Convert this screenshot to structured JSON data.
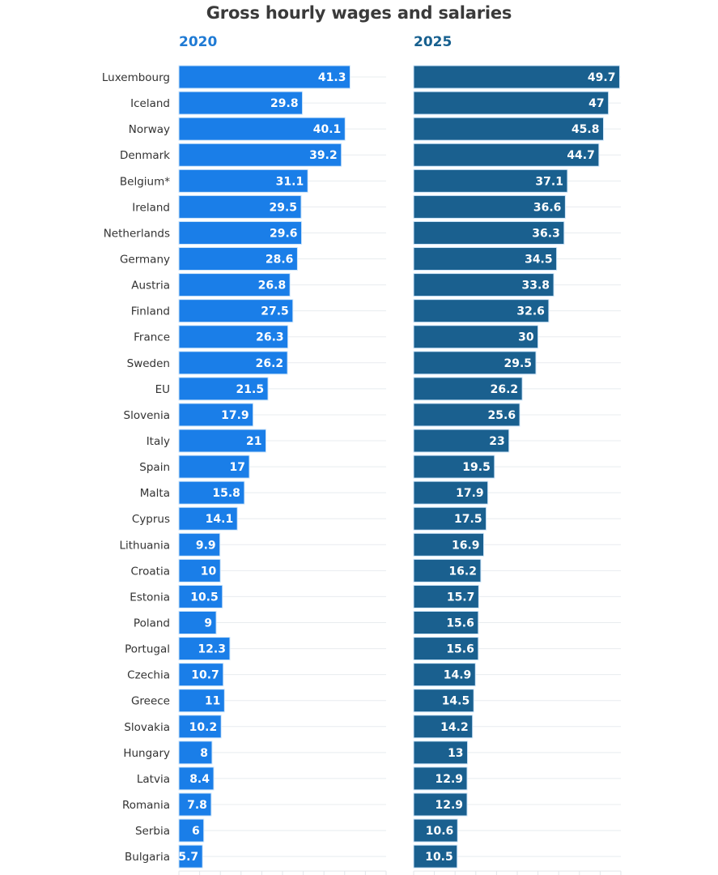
{
  "chart_data": {
    "type": "bar",
    "orientation": "horizontal",
    "title": "Gross hourly wages and salaries",
    "xlabel": "",
    "ylabel": "",
    "xlim": [
      0,
      50
    ],
    "grid": true,
    "categories": [
      "Luxembourg",
      "Iceland",
      "Norway",
      "Denmark",
      "Belgium*",
      "Ireland",
      "Netherlands",
      "Germany",
      "Austria",
      "Finland",
      "France",
      "Sweden",
      "EU",
      "Slovenia",
      "Italy",
      "Spain",
      "Malta",
      "Cyprus",
      "Lithuania",
      "Croatia",
      "Estonia",
      "Poland",
      "Portugal",
      "Czechia",
      "Greece",
      "Slovakia",
      "Hungary",
      "Latvia",
      "Romania",
      "Serbia",
      "Bulgaria"
    ],
    "series": [
      {
        "name": "2020",
        "color": "#1a7ee8",
        "values": [
          41.3,
          29.8,
          40.1,
          39.2,
          31.1,
          29.5,
          29.6,
          28.6,
          26.8,
          27.5,
          26.3,
          26.2,
          21.5,
          17.9,
          21,
          17,
          15.8,
          14.1,
          9.9,
          10,
          10.5,
          9,
          12.3,
          10.7,
          11,
          10.2,
          8,
          8.4,
          7.8,
          6,
          5.7
        ]
      },
      {
        "name": "2025",
        "color": "#1a608f",
        "values": [
          49.7,
          47,
          45.8,
          44.7,
          37.1,
          36.6,
          36.3,
          34.5,
          33.8,
          32.6,
          30,
          29.5,
          26.2,
          25.6,
          23,
          19.5,
          17.9,
          17.5,
          16.9,
          16.2,
          15.7,
          15.6,
          15.6,
          14.9,
          14.5,
          14.2,
          13,
          12.9,
          12.9,
          10.6,
          10.5
        ]
      }
    ],
    "legend": "panel titles above each panel"
  }
}
